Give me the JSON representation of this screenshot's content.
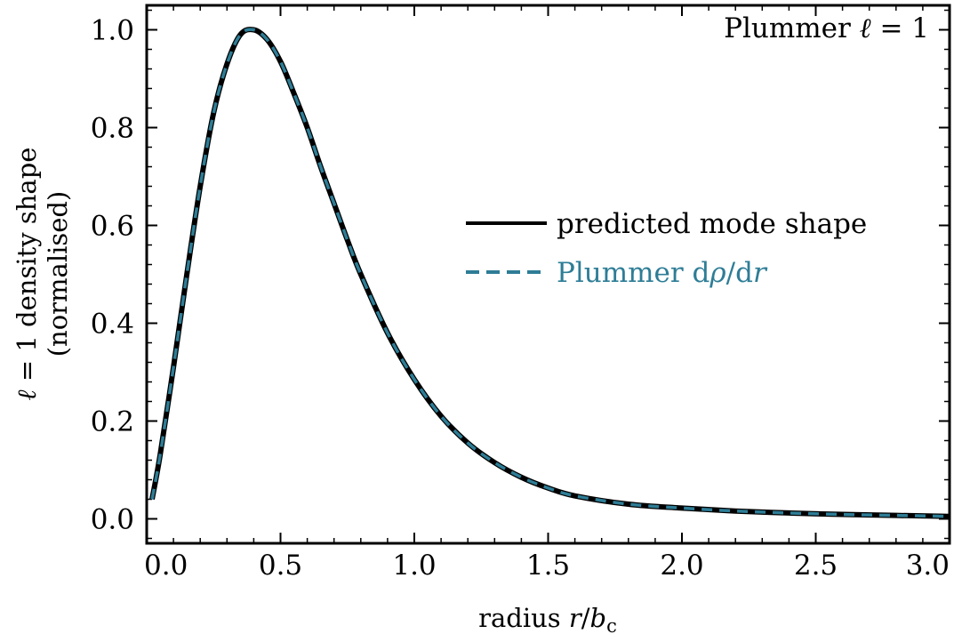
{
  "chart_data": {
    "type": "line",
    "title": "",
    "panel_label": {
      "text": "Plummer ",
      "ell": "ℓ",
      "rest": " = 1"
    },
    "xlabel": {
      "prefix": "radius ",
      "r": "r",
      "slash": "/",
      "b": "b",
      "sub": "c"
    },
    "ylabel": {
      "line1": {
        "ell": "ℓ",
        "rest": " = 1 density shape"
      },
      "line2": "(normalised)"
    },
    "xlim": [
      0.0,
      3.0
    ],
    "ylim": [
      -0.05,
      1.05
    ],
    "xticks": [
      "0.0",
      "0.5",
      "1.0",
      "1.5",
      "2.0",
      "2.5",
      "3.0"
    ],
    "yticks": [
      "0.0",
      "0.2",
      "0.4",
      "0.6",
      "0.8",
      "1.0"
    ],
    "legend": {
      "placement": "center-right",
      "entries": [
        {
          "label": "predicted mode shape",
          "style": "solid"
        },
        {
          "label_parts": [
            "Plummer d",
            "ρ",
            "/d",
            "r"
          ],
          "style": "dashed"
        }
      ]
    },
    "grid": false,
    "x": [
      0.02,
      0.05,
      0.1,
      0.15,
      0.2,
      0.25,
      0.3,
      0.35,
      0.4,
      0.45,
      0.5,
      0.55,
      0.6,
      0.65,
      0.7,
      0.75,
      0.8,
      0.9,
      1.0,
      1.1,
      1.2,
      1.3,
      1.4,
      1.5,
      1.6,
      1.8,
      2.0,
      2.2,
      2.4,
      2.6,
      2.8,
      3.0
    ],
    "series": [
      {
        "name": "predicted mode shape",
        "color": "#000000",
        "values": [
          0.04,
          0.13,
          0.31,
          0.5,
          0.68,
          0.83,
          0.93,
          0.99,
          1.0,
          0.98,
          0.935,
          0.87,
          0.8,
          0.72,
          0.645,
          0.57,
          0.5,
          0.38,
          0.285,
          0.21,
          0.155,
          0.115,
          0.085,
          0.063,
          0.047,
          0.03,
          0.022,
          0.016,
          0.012,
          0.009,
          0.007,
          0.005
        ]
      },
      {
        "name": "Plummer dρ/dr",
        "color": "#2e7d96",
        "values": [
          0.04,
          0.13,
          0.31,
          0.5,
          0.68,
          0.83,
          0.93,
          0.99,
          1.0,
          0.98,
          0.935,
          0.87,
          0.8,
          0.72,
          0.645,
          0.57,
          0.5,
          0.38,
          0.285,
          0.21,
          0.155,
          0.115,
          0.085,
          0.063,
          0.047,
          0.03,
          0.022,
          0.016,
          0.012,
          0.009,
          0.007,
          0.005
        ]
      }
    ]
  }
}
